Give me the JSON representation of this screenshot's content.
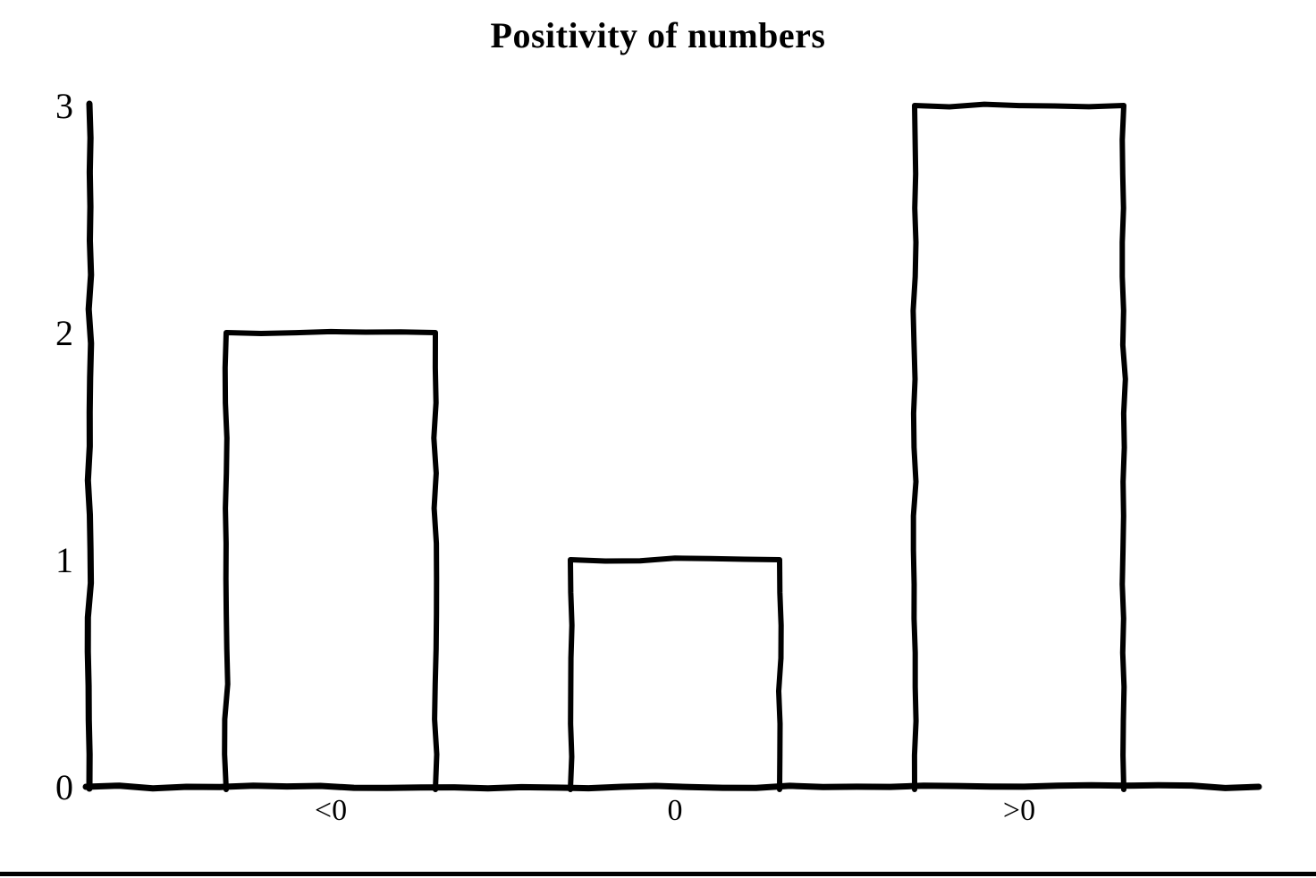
{
  "page": {
    "background": "#ffffff",
    "ink_color": "#000000",
    "style": "hand-drawn sketch chart, black ink on white"
  },
  "chart_data": {
    "type": "bar",
    "title": "Positivity of numbers",
    "categories": [
      "<0",
      "0",
      ">0"
    ],
    "values": [
      2,
      1,
      3
    ],
    "xlabel": "",
    "ylabel": "",
    "ylim": [
      0,
      3
    ],
    "yticks": [
      0,
      1,
      2,
      3
    ],
    "grid": false,
    "legend": false,
    "bar_fill": "none",
    "bar_outline": "#000000"
  }
}
